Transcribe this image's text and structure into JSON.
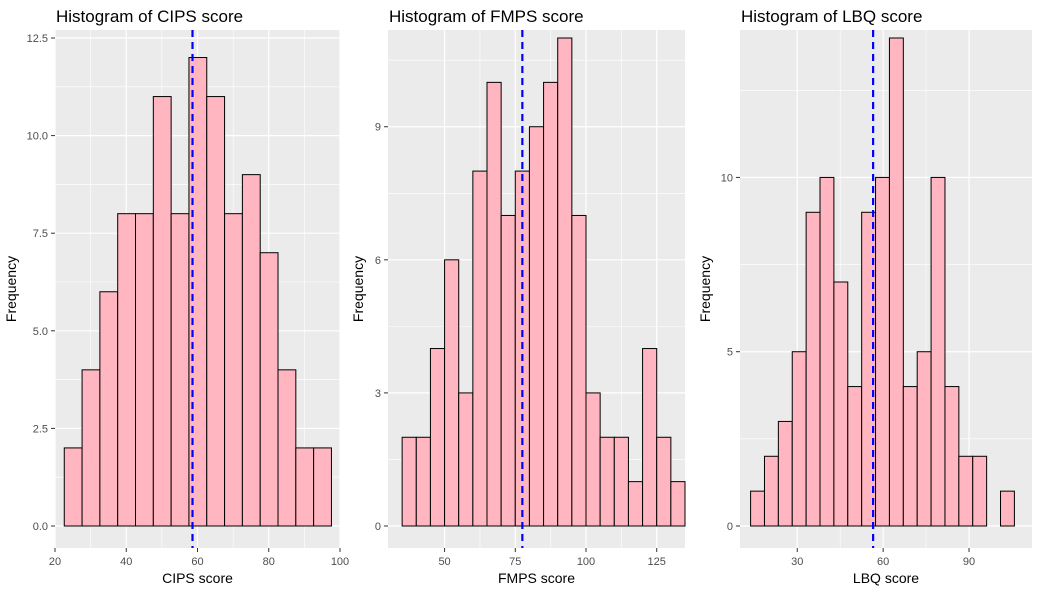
{
  "colors": {
    "panel_bg": "#ebebeb",
    "grid": "#ffffff",
    "bar_fill": "#ffb6c1",
    "bar_stroke": "#000000",
    "mean_line": "#0000ff",
    "tick_text": "#4d4d4d",
    "title_text": "#000000"
  },
  "chart_data": [
    {
      "type": "histogram",
      "title": "Histogram of CIPS score",
      "xlabel": "CIPS score",
      "ylabel": "Frequency",
      "xlim": [
        20,
        100
      ],
      "ylim": [
        0,
        12.5
      ],
      "xticks": [
        20,
        40,
        60,
        80,
        100
      ],
      "xtick_labels": [
        "20",
        "40",
        "60",
        "80",
        "100"
      ],
      "yticks": [
        0,
        2.5,
        5,
        7.5,
        10,
        12.5
      ],
      "ytick_labels": [
        "0.0",
        "2.5",
        "5.0",
        "7.5",
        "10.0",
        "12.5"
      ],
      "bins_start": 22.6,
      "bin_width": 5,
      "counts": [
        2,
        4,
        6,
        8,
        8,
        11,
        8,
        12,
        11,
        8,
        9,
        7,
        4,
        2,
        2
      ],
      "mean_line_x": 58.6,
      "grid": true
    },
    {
      "type": "histogram",
      "title": "Histogram of FMPS score",
      "xlabel": "FMPS score",
      "ylabel": "Frequency",
      "xlim": [
        30,
        135
      ],
      "ylim": [
        0,
        11
      ],
      "xticks": [
        50,
        75,
        100,
        125
      ],
      "xtick_labels": [
        "50",
        "75",
        "100",
        "125"
      ],
      "yticks": [
        0,
        3,
        6,
        9
      ],
      "ytick_labels": [
        "0",
        "3",
        "6",
        "9"
      ],
      "bins_start": 35,
      "bin_width": 5,
      "counts": [
        2,
        2,
        4,
        6,
        3,
        8,
        10,
        7,
        8,
        9,
        10,
        11,
        7,
        3,
        2,
        2,
        1,
        4,
        2,
        1
      ],
      "mean_line_x": 77.5,
      "grid": true
    },
    {
      "type": "histogram",
      "title": "Histogram of LBQ score",
      "xlabel": "LBQ score",
      "ylabel": "Frequency",
      "xlim": [
        10,
        112
      ],
      "ylim": [
        0,
        14
      ],
      "xticks": [
        30,
        60,
        90
      ],
      "xtick_labels": [
        "30",
        "60",
        "90"
      ],
      "yticks": [
        0,
        5,
        10
      ],
      "ytick_labels": [
        "0",
        "5",
        "10"
      ],
      "bins_start": 13.7,
      "bin_width": 4.85,
      "counts": [
        1,
        2,
        3,
        5,
        9,
        10,
        7,
        4,
        9,
        10,
        14,
        4,
        5,
        10,
        4,
        2,
        2,
        0,
        1
      ],
      "mean_line_x": 56.5,
      "grid": true
    }
  ]
}
